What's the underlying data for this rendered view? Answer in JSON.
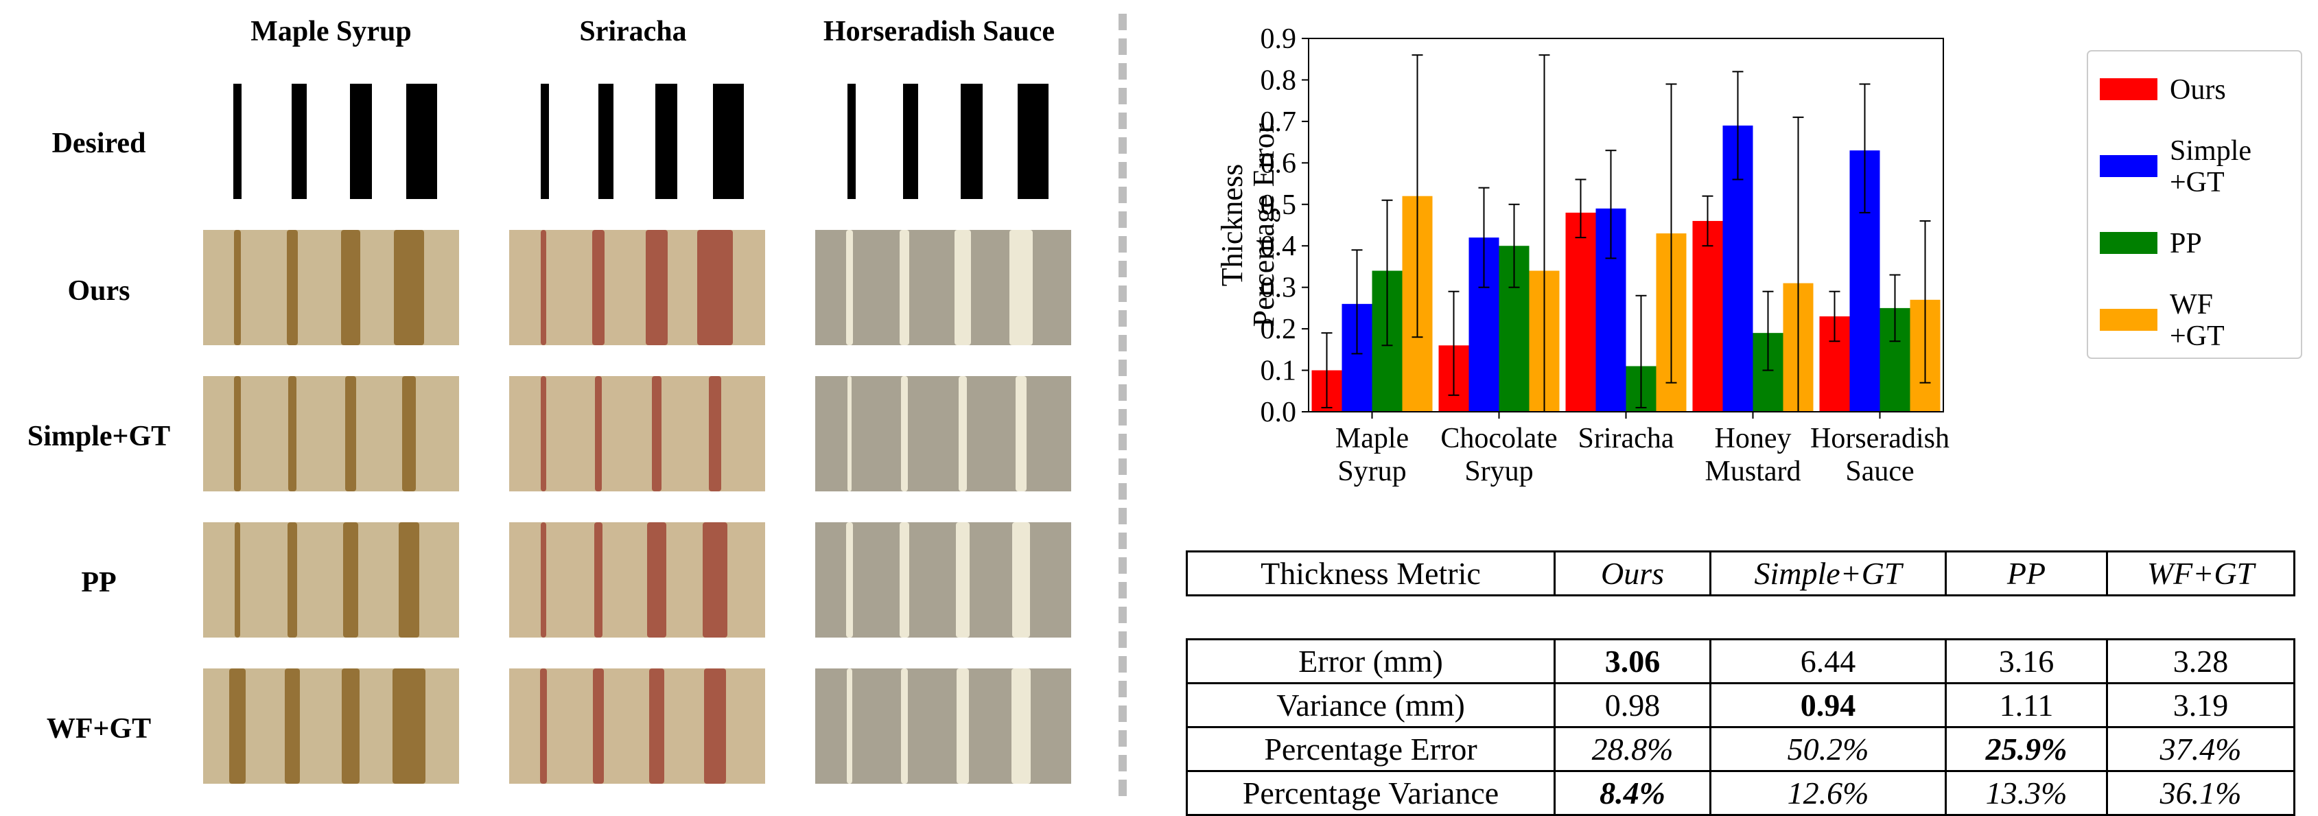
{
  "figure": {
    "columns": [
      "Maple Syrup",
      "Sriracha",
      "Horseradish Sauce"
    ],
    "rows": [
      "Desired",
      "Ours",
      "Simple+GT",
      "PP",
      "WF+GT"
    ],
    "colors": {
      "maple_bg": "#cbb994",
      "maple_stripe": "#8f6a2c",
      "sriracha_bg": "#cdb995",
      "sriracha_stripe": "#a24e3c",
      "horseradish_bg": "#a8a292",
      "horseradish_stripe": "#f4efdc"
    }
  },
  "chart_data": {
    "type": "bar",
    "categories": [
      "Maple\nSyrup",
      "Chocolate\nSryup",
      "Sriracha",
      "Honey\nMustard",
      "Horseradish\nSauce"
    ],
    "ylabel": "Thickness\nPercentage Error",
    "ylim": [
      0,
      0.9
    ],
    "yticks": [
      "0.0",
      "0.1",
      "0.2",
      "0.3",
      "0.4",
      "0.5",
      "0.6",
      "0.7",
      "0.8",
      "0.9"
    ],
    "legend_position": "right",
    "series": [
      {
        "name": "Ours",
        "color": "#ff0000",
        "values": [
          0.1,
          0.16,
          0.48,
          0.46,
          0.23
        ],
        "err_low": [
          0.01,
          0.04,
          0.42,
          0.4,
          0.17
        ],
        "err_high": [
          0.19,
          0.29,
          0.56,
          0.52,
          0.29
        ]
      },
      {
        "name": "Simple\n+GT",
        "color": "#0000ff",
        "values": [
          0.26,
          0.42,
          0.49,
          0.69,
          0.63
        ],
        "err_low": [
          0.14,
          0.3,
          0.37,
          0.56,
          0.48
        ],
        "err_high": [
          0.39,
          0.54,
          0.63,
          0.82,
          0.79
        ]
      },
      {
        "name": "PP",
        "color": "#008000",
        "values": [
          0.34,
          0.4,
          0.11,
          0.19,
          0.25
        ],
        "err_low": [
          0.16,
          0.3,
          0.01,
          0.1,
          0.17
        ],
        "err_high": [
          0.51,
          0.5,
          0.28,
          0.29,
          0.33
        ]
      },
      {
        "name": "WF\n+GT",
        "color": "#ffa500",
        "values": [
          0.52,
          0.34,
          0.43,
          0.31,
          0.27
        ],
        "err_low": [
          0.18,
          0.0,
          0.07,
          0.0,
          0.07
        ],
        "err_high": [
          0.86,
          0.86,
          0.79,
          0.71,
          0.46
        ]
      }
    ]
  },
  "table": {
    "headers": [
      "Thickness Metric",
      "Ours",
      "Simple+GT",
      "PP",
      "WF+GT"
    ],
    "rows": [
      [
        "Error (mm)",
        "3.06",
        "6.44",
        "3.16",
        "3.28"
      ],
      [
        "Variance (mm)",
        "0.98",
        "0.94",
        "1.11",
        "3.19"
      ],
      [
        "Percentage Error",
        "28.8%",
        "50.2%",
        "25.9%",
        "37.4%"
      ],
      [
        "Percentage Variance",
        "8.4%",
        "12.6%",
        "13.3%",
        "36.1%"
      ]
    ]
  }
}
